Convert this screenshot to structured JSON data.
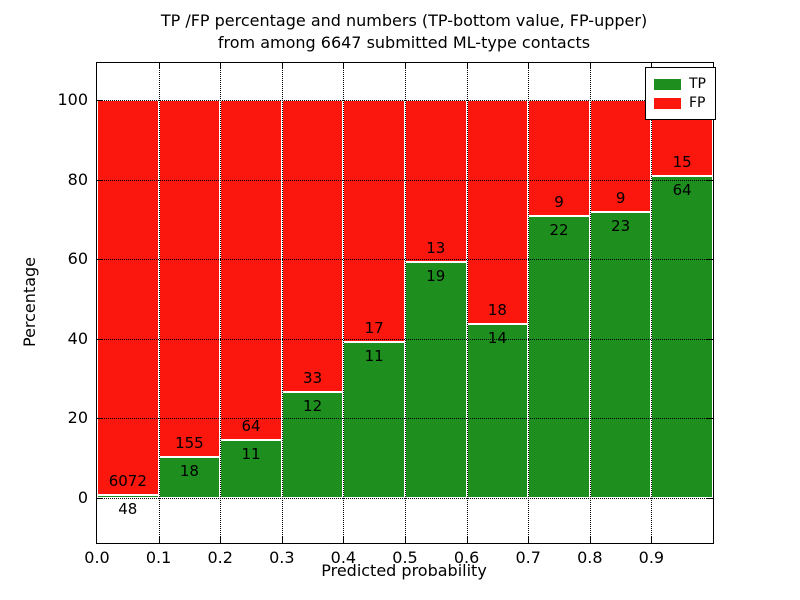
{
  "figure": {
    "title_line1": "TP /FP percentage and numbers (TP-bottom value, FP-upper)",
    "title_line2": "from among 6647 submitted ML-type contacts",
    "background_color": "#ffffff"
  },
  "chart_data": {
    "type": "bar",
    "subtype": "stacked-percentage-histogram",
    "title": "TP /FP percentage and numbers (TP-bottom value, FP-upper)\nfrom among 6647 submitted ML-type contacts",
    "xlabel": "Predicted probability",
    "ylabel": "Percentage",
    "total_contacts": 6647,
    "bin_width": 0.1,
    "categories": [
      "0.0-0.1",
      "0.1-0.2",
      "0.2-0.3",
      "0.3-0.4",
      "0.4-0.5",
      "0.5-0.6",
      "0.6-0.7",
      "0.7-0.8",
      "0.8-0.9",
      "0.9-1.0"
    ],
    "series": [
      {
        "name": "TP",
        "color": "#1e8e1e",
        "counts": [
          48,
          18,
          11,
          12,
          11,
          19,
          14,
          22,
          23,
          64
        ]
      },
      {
        "name": "FP",
        "color": "#fb170d",
        "counts": [
          6072,
          155,
          64,
          33,
          17,
          13,
          18,
          9,
          9,
          15
        ]
      }
    ],
    "x_tick_labels": [
      "0.0",
      "0.1",
      "0.2",
      "0.3",
      "0.4",
      "0.5",
      "0.6",
      "0.7",
      "0.8",
      "0.9"
    ],
    "y_ticks": [
      0,
      20,
      40,
      60,
      80,
      100
    ],
    "xlim": [
      0.0,
      1.0
    ],
    "ylim": [
      -11.3,
      109.3
    ],
    "grid": true,
    "grid_style": "dotted",
    "bar_edge_color": "#ffffff",
    "legend": {
      "labels": [
        "TP",
        "FP"
      ],
      "position": "upper right"
    }
  }
}
